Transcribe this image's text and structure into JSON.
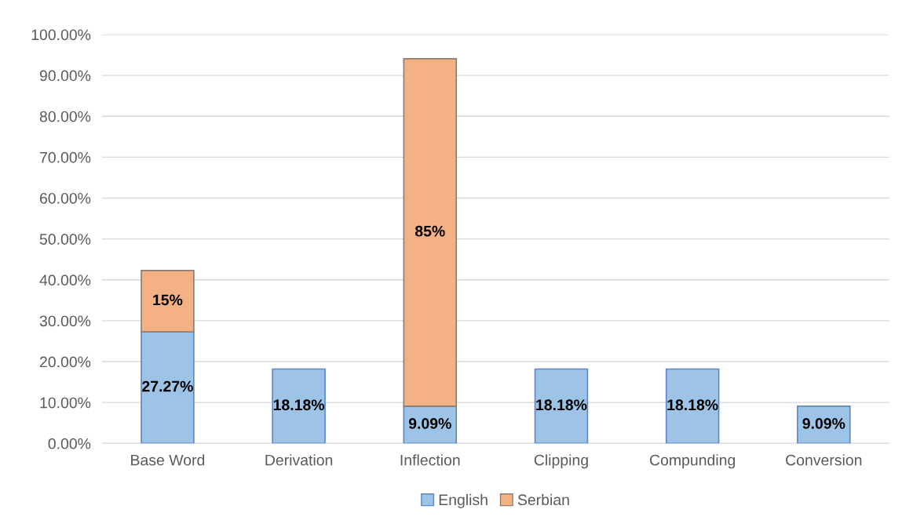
{
  "chart_data": {
    "type": "bar",
    "stacked": true,
    "categories": [
      "Base Word",
      "Derivation",
      "Inflection",
      "Clipping",
      "Compunding",
      "Conversion"
    ],
    "series": [
      {
        "name": "English",
        "color": "#9dc3e6",
        "values": [
          27.27,
          18.18,
          9.09,
          18.18,
          18.18,
          9.09
        ],
        "value_labels": [
          "27.27%",
          "18.18%",
          "9.09%",
          "18.18%",
          "18.18%",
          "9.09%"
        ]
      },
      {
        "name": "Serbian",
        "color": "#f4b183",
        "values": [
          15,
          null,
          85,
          null,
          null,
          null
        ],
        "value_labels": [
          "15%",
          null,
          "85%",
          null,
          null,
          null
        ]
      }
    ],
    "ylim": [
      0,
      100
    ],
    "yticks": [
      {
        "value": 0,
        "label": "0.00%"
      },
      {
        "value": 10,
        "label": "10.00%"
      },
      {
        "value": 20,
        "label": "20.00%"
      },
      {
        "value": 30,
        "label": "30.00%"
      },
      {
        "value": 40,
        "label": "40.00%"
      },
      {
        "value": 50,
        "label": "50.00%"
      },
      {
        "value": 60,
        "label": "60.00%"
      },
      {
        "value": 70,
        "label": "70.00%"
      },
      {
        "value": 80,
        "label": "80.00%"
      },
      {
        "value": 90,
        "label": "90.00%"
      },
      {
        "value": 100,
        "label": "100.00%"
      }
    ],
    "grid": "y",
    "legend": "bottom"
  }
}
